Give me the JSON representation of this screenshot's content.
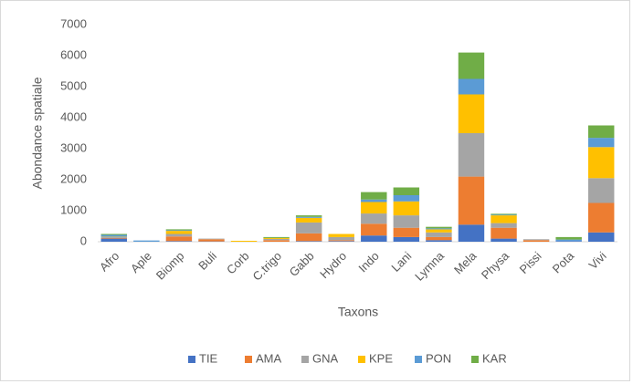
{
  "chart_data": {
    "type": "stacked_bar",
    "x_label": "Taxons",
    "y_label": "Abondance spatiale",
    "categories": [
      "Afro",
      "Aple",
      "Biomp",
      "Buli",
      "Corb",
      "C.trigo",
      "Gabb",
      "Hydro",
      "Indo",
      "Lani",
      "Lymna",
      "Mela",
      "Physa",
      "Pissi",
      "Pota",
      "Vivi"
    ],
    "series": [
      {
        "name": "TIE",
        "color": "#4472c4",
        "values": [
          100,
          0,
          20,
          10,
          0,
          0,
          20,
          20,
          200,
          150,
          50,
          550,
          100,
          0,
          20,
          300
        ]
      },
      {
        "name": "AMA",
        "color": "#ed7d31",
        "values": [
          20,
          0,
          150,
          70,
          0,
          50,
          250,
          30,
          380,
          300,
          100,
          1550,
          350,
          50,
          0,
          950
        ]
      },
      {
        "name": "GNA",
        "color": "#a5a5a5",
        "values": [
          30,
          0,
          80,
          20,
          0,
          40,
          350,
          100,
          330,
          400,
          150,
          1400,
          150,
          30,
          0,
          800
        ]
      },
      {
        "name": "KPE",
        "color": "#ffc000",
        "values": [
          10,
          0,
          100,
          0,
          30,
          30,
          150,
          100,
          370,
          450,
          100,
          1250,
          250,
          0,
          0,
          1000
        ]
      },
      {
        "name": "PON",
        "color": "#5b9bd5",
        "values": [
          60,
          40,
          20,
          0,
          0,
          0,
          30,
          0,
          80,
          200,
          30,
          500,
          20,
          0,
          50,
          300
        ]
      },
      {
        "name": "KAR",
        "color": "#70ad47",
        "values": [
          30,
          0,
          30,
          0,
          0,
          30,
          50,
          0,
          240,
          250,
          50,
          850,
          30,
          0,
          80,
          400
        ]
      }
    ],
    "ylim": [
      0,
      7000
    ],
    "yticks": [
      0,
      1000,
      2000,
      3000,
      4000,
      5000,
      6000,
      7000
    ],
    "legend": "bottom"
  }
}
